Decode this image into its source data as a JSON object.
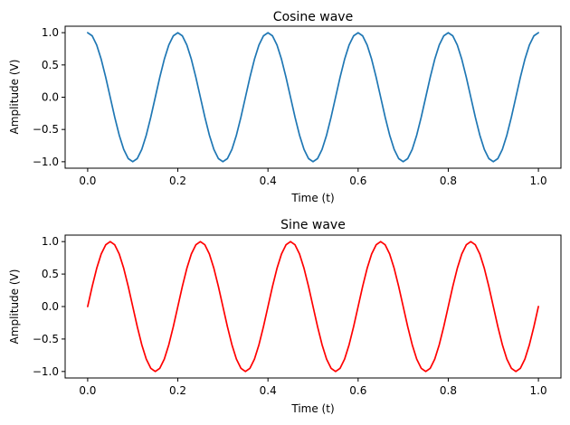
{
  "chart_data": [
    {
      "type": "line",
      "title": "Cosine wave",
      "xlabel": "Time (t)",
      "ylabel": "Amplitude (V)",
      "xlim": [
        -0.05,
        1.05
      ],
      "ylim": [
        -1.1,
        1.1
      ],
      "xticks": [
        0.0,
        0.2,
        0.4,
        0.6,
        0.8,
        1.0
      ],
      "xtick_labels": [
        "0.0",
        "0.2",
        "0.4",
        "0.6",
        "0.8",
        "1.0"
      ],
      "yticks": [
        1.0,
        0.5,
        0.0,
        -0.5,
        -1.0
      ],
      "ytick_labels": [
        "1.0",
        "0.5",
        "0.0",
        "−0.5",
        "−1.0"
      ],
      "grid": false,
      "series": [
        {
          "color": "#1f77b4",
          "x": [
            0.0,
            0.01,
            0.02,
            0.03,
            0.04,
            0.05,
            0.06,
            0.07,
            0.08,
            0.09,
            0.1,
            0.11,
            0.12,
            0.13,
            0.14,
            0.15,
            0.16,
            0.17,
            0.18,
            0.19,
            0.2,
            0.21,
            0.22,
            0.23,
            0.24,
            0.25,
            0.26,
            0.27,
            0.28,
            0.29,
            0.3,
            0.31,
            0.32,
            0.33,
            0.34,
            0.35,
            0.36,
            0.37,
            0.38,
            0.39,
            0.4,
            0.41,
            0.42,
            0.43,
            0.44,
            0.45,
            0.46,
            0.47,
            0.48,
            0.49,
            0.5,
            0.51,
            0.52,
            0.53,
            0.54,
            0.55,
            0.56,
            0.57,
            0.58,
            0.59,
            0.6,
            0.61,
            0.62,
            0.63,
            0.64,
            0.65,
            0.66,
            0.67,
            0.68,
            0.69,
            0.7,
            0.71,
            0.72,
            0.73,
            0.74,
            0.75,
            0.76,
            0.77,
            0.78,
            0.79,
            0.8,
            0.81,
            0.82,
            0.83,
            0.84,
            0.85,
            0.86,
            0.87,
            0.88,
            0.89,
            0.9,
            0.91,
            0.92,
            0.93,
            0.94,
            0.95,
            0.96,
            0.97,
            0.98,
            0.99,
            1.0
          ],
          "y": [
            1.0,
            0.951,
            0.809,
            0.588,
            0.309,
            0.0,
            -0.309,
            -0.588,
            -0.809,
            -0.951,
            -1.0,
            -0.951,
            -0.809,
            -0.588,
            -0.309,
            0.0,
            0.309,
            0.588,
            0.809,
            0.951,
            1.0,
            0.951,
            0.809,
            0.588,
            0.309,
            0.0,
            -0.309,
            -0.588,
            -0.809,
            -0.951,
            -1.0,
            -0.951,
            -0.809,
            -0.588,
            -0.309,
            0.0,
            0.309,
            0.588,
            0.809,
            0.951,
            1.0,
            0.951,
            0.809,
            0.588,
            0.309,
            0.0,
            -0.309,
            -0.588,
            -0.809,
            -0.951,
            -1.0,
            -0.951,
            -0.809,
            -0.588,
            -0.309,
            0.0,
            0.309,
            0.588,
            0.809,
            0.951,
            1.0,
            0.951,
            0.809,
            0.588,
            0.309,
            0.0,
            -0.309,
            -0.588,
            -0.809,
            -0.951,
            -1.0,
            -0.951,
            -0.809,
            -0.588,
            -0.309,
            0.0,
            0.309,
            0.588,
            0.809,
            0.951,
            1.0,
            0.951,
            0.809,
            0.588,
            0.309,
            0.0,
            -0.309,
            -0.588,
            -0.809,
            -0.951,
            -1.0,
            -0.951,
            -0.809,
            -0.588,
            -0.309,
            0.0,
            0.309,
            0.588,
            0.809,
            0.951,
            1.0
          ]
        }
      ]
    },
    {
      "type": "line",
      "title": "Sine wave",
      "xlabel": "Time (t)",
      "ylabel": "Amplitude (V)",
      "xlim": [
        -0.05,
        1.05
      ],
      "ylim": [
        -1.1,
        1.1
      ],
      "xticks": [
        0.0,
        0.2,
        0.4,
        0.6,
        0.8,
        1.0
      ],
      "xtick_labels": [
        "0.0",
        "0.2",
        "0.4",
        "0.6",
        "0.8",
        "1.0"
      ],
      "yticks": [
        1.0,
        0.5,
        0.0,
        -0.5,
        -1.0
      ],
      "ytick_labels": [
        "1.0",
        "0.5",
        "0.0",
        "−0.5",
        "−1.0"
      ],
      "grid": false,
      "series": [
        {
          "color": "#ff0000",
          "x": [
            0.0,
            0.01,
            0.02,
            0.03,
            0.04,
            0.05,
            0.06,
            0.07,
            0.08,
            0.09,
            0.1,
            0.11,
            0.12,
            0.13,
            0.14,
            0.15,
            0.16,
            0.17,
            0.18,
            0.19,
            0.2,
            0.21,
            0.22,
            0.23,
            0.24,
            0.25,
            0.26,
            0.27,
            0.28,
            0.29,
            0.3,
            0.31,
            0.32,
            0.33,
            0.34,
            0.35,
            0.36,
            0.37,
            0.38,
            0.39,
            0.4,
            0.41,
            0.42,
            0.43,
            0.44,
            0.45,
            0.46,
            0.47,
            0.48,
            0.49,
            0.5,
            0.51,
            0.52,
            0.53,
            0.54,
            0.55,
            0.56,
            0.57,
            0.58,
            0.59,
            0.6,
            0.61,
            0.62,
            0.63,
            0.64,
            0.65,
            0.66,
            0.67,
            0.68,
            0.69,
            0.7,
            0.71,
            0.72,
            0.73,
            0.74,
            0.75,
            0.76,
            0.77,
            0.78,
            0.79,
            0.8,
            0.81,
            0.82,
            0.83,
            0.84,
            0.85,
            0.86,
            0.87,
            0.88,
            0.89,
            0.9,
            0.91,
            0.92,
            0.93,
            0.94,
            0.95,
            0.96,
            0.97,
            0.98,
            0.99,
            1.0
          ],
          "y": [
            0.0,
            0.309,
            0.588,
            0.809,
            0.951,
            1.0,
            0.951,
            0.809,
            0.588,
            0.309,
            0.0,
            -0.309,
            -0.588,
            -0.809,
            -0.951,
            -1.0,
            -0.951,
            -0.809,
            -0.588,
            -0.309,
            0.0,
            0.309,
            0.588,
            0.809,
            0.951,
            1.0,
            0.951,
            0.809,
            0.588,
            0.309,
            0.0,
            -0.309,
            -0.588,
            -0.809,
            -0.951,
            -1.0,
            -0.951,
            -0.809,
            -0.588,
            -0.309,
            0.0,
            0.309,
            0.588,
            0.809,
            0.951,
            1.0,
            0.951,
            0.809,
            0.588,
            0.309,
            0.0,
            -0.309,
            -0.588,
            -0.809,
            -0.951,
            -1.0,
            -0.951,
            -0.809,
            -0.588,
            -0.309,
            0.0,
            0.309,
            0.588,
            0.809,
            0.951,
            1.0,
            0.951,
            0.809,
            0.588,
            0.309,
            0.0,
            -0.309,
            -0.588,
            -0.809,
            -0.951,
            -1.0,
            -0.951,
            -0.809,
            -0.588,
            -0.309,
            0.0,
            0.309,
            0.588,
            0.809,
            0.951,
            1.0,
            0.951,
            0.809,
            0.588,
            0.309,
            0.0,
            -0.309,
            -0.588,
            -0.809,
            -0.951,
            -1.0,
            -0.951,
            -0.809,
            -0.588,
            -0.309,
            0.0
          ]
        }
      ]
    }
  ]
}
